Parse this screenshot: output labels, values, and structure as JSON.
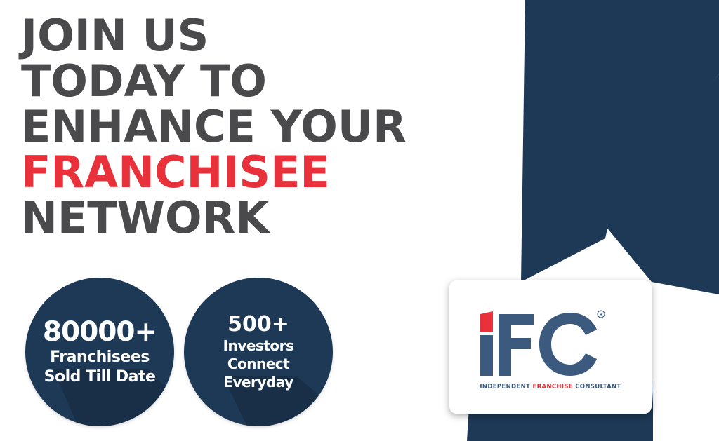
{
  "headline": {
    "line1": "JOIN US",
    "line2": "TODAY TO",
    "line3": "ENHANCE YOUR",
    "line4": "FRANCHISEE",
    "line5": "NETWORK"
  },
  "stats": [
    {
      "value": "80000+",
      "line1": "Franchisees",
      "line2": "Sold Till Date"
    },
    {
      "value": "500+",
      "line1": "Investors",
      "line2": "Connect",
      "line3": "Everyday"
    }
  ],
  "logo": {
    "letters": "IFC",
    "registered": "R",
    "tagline_part1": "INDEPENDENT",
    "tagline_part2": "FRANCHISE",
    "tagline_part3": "CONSULTANT"
  },
  "colors": {
    "navy": "#1d3955",
    "accent_red": "#e8313a",
    "headline_gray": "#4a4a4c",
    "logo_blue": "#3c5a7e"
  }
}
